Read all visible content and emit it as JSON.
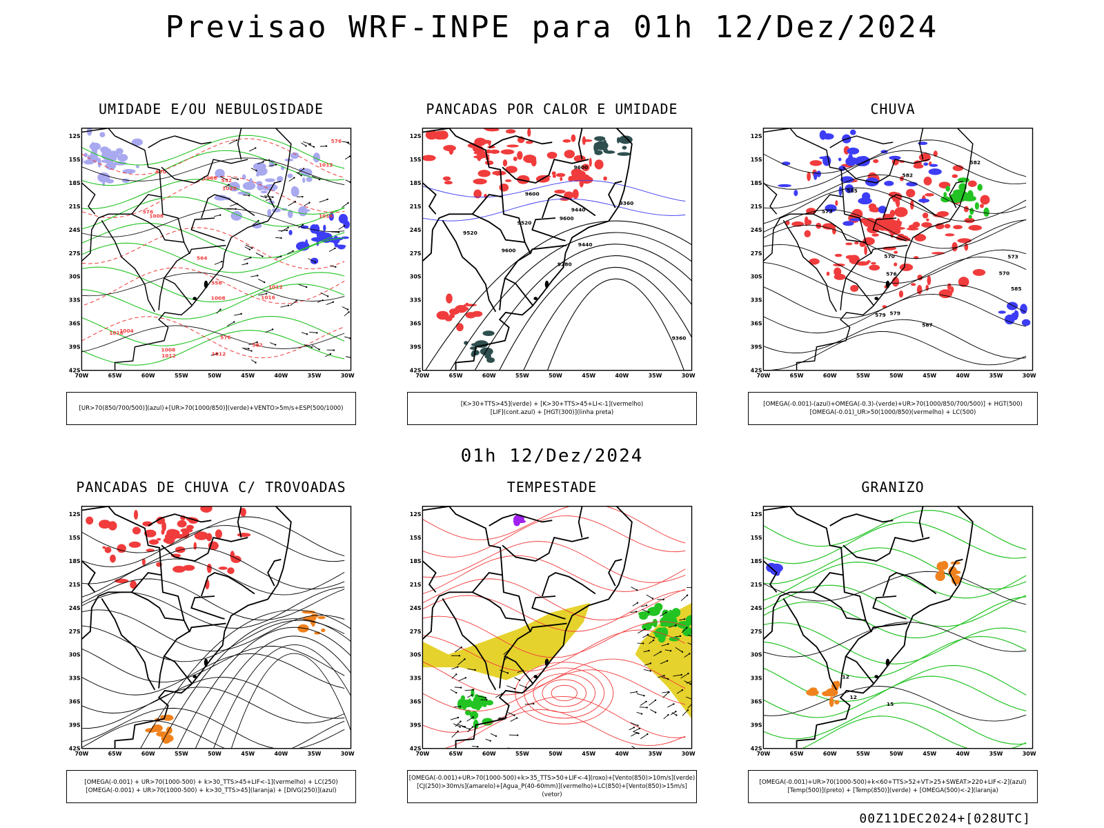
{
  "title": "Previsao WRF-INPE  para 01h 12/Dez/2024",
  "subtitle": "01h 12/Dez/2024",
  "footer": "00Z11DEC2024+[028UTC]",
  "axes": {
    "lat_labels": [
      "12S",
      "15S",
      "18S",
      "21S",
      "24S",
      "27S",
      "30S",
      "33S",
      "36S",
      "39S",
      "42S"
    ],
    "lon_labels": [
      "70W",
      "65W",
      "60W",
      "55W",
      "50W",
      "45W",
      "40W",
      "35W",
      "30W"
    ]
  },
  "colors": {
    "blue": "#3d3df5",
    "lightblue": "#a9a9f0",
    "green": "#22c322",
    "red": "#f03c3c",
    "yellow": "#e6d22d",
    "darkteal": "#2f4f4f",
    "orange": "#f0821e",
    "purple": "#a020f0"
  },
  "panels": [
    {
      "title": "UMIDADE E/OU NEBULOSIDADE",
      "legend": [
        "[UR>70(850/700/500)](azul)+[UR>70(1000/850)](verde)+VENTO>5m/s+ESP(500/1000)"
      ],
      "contour_labels": [
        "1008",
        "1008",
        "1008",
        "1012",
        "1012",
        "1012",
        "1012",
        "1016",
        "1016",
        "1016",
        "1020",
        "1004",
        "1008",
        "576",
        "576",
        "576",
        "564",
        "570",
        "558",
        "552",
        "582"
      ]
    },
    {
      "title": "PANCADAS POR CALOR E UMIDADE",
      "legend": [
        "[K>30+TTS>45](verde) + [K>30+TTS>45+LI<-1](vermelho)",
        "[LIF](cont.azul) + [HGT(300)](linha preta)"
      ],
      "contour_labels": [
        "9600",
        "9600",
        "9600",
        "9520",
        "9440",
        "9360",
        "9280",
        "9360",
        "9440",
        "9520",
        "9600"
      ]
    },
    {
      "title": "CHUVA",
      "legend": [
        "[OMEGA(-0.001)-(azul)+OMEGA(-0.3)-(verde)+UR>70(1000/850/700/500)] + HGT(500)",
        "[OMEGA(-0.01)_UR>50(1000/850)(vermelho) + LC(500)"
      ],
      "contour_labels": [
        "582",
        "585",
        "579",
        "576",
        "573",
        "570",
        "567",
        "579",
        "582",
        "585",
        "573",
        "570"
      ]
    },
    {
      "title": "PANCADAS DE CHUVA C/ TROVOADAS",
      "legend": [
        "[OMEGA(-0.001) + UR>70(1000-500) + k>30_TTS>45+LIF<-1](vermelho) + LC(250)",
        "[OMEGA(-0.001) + UR>70(1000-500) + k>30_TTS>45](laranja) + [DIVG(250)](azul)"
      ],
      "contour_labels": []
    },
    {
      "title": "TEMPESTADE",
      "legend": [
        "[OMEGA(-0.001)+UR>70(1000-500)+k>35_TTS>50+LIF<-4](roxo)+[Vento(850)>10m/s](verde)",
        "[CJ(250)>30m/s](amarelo)+[Agua_P(40-60mm)](vermelho)+LC(850)+[Vento(850)>15m/s](vetor)"
      ],
      "contour_labels": []
    },
    {
      "title": "GRANIZO",
      "legend": [
        "[OMEGA(-0.001)+UR>70(1000-500)+k<60+TTS>52+VT>25+SWEAT>220+LIF<-2](azul)",
        "[Temp(500)](preto) + [Temp(850)](verde) + [OMEGA(500)<-2](laranja)"
      ],
      "contour_labels": [
        "12",
        "15",
        "12"
      ]
    }
  ]
}
